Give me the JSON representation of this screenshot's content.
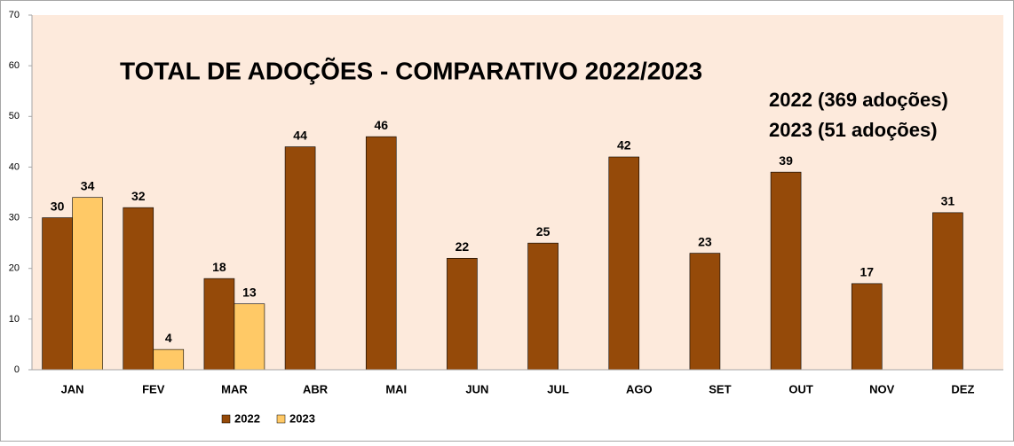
{
  "chart_data": {
    "type": "bar",
    "title": "TOTAL DE ADOÇÕES - COMPARATIVO 2022/2023",
    "annotations": [
      "2022 (369 adoções)",
      "2023 (51 adoções)"
    ],
    "categories": [
      "JAN",
      "FEV",
      "MAR",
      "ABR",
      "MAI",
      "JUN",
      "JUL",
      "AGO",
      "SET",
      "OUT",
      "NOV",
      "DEZ"
    ],
    "series": [
      {
        "name": "2022",
        "color": "#954a09",
        "values": [
          30,
          32,
          18,
          44,
          46,
          22,
          25,
          42,
          23,
          39,
          17,
          31
        ]
      },
      {
        "name": "2023",
        "color": "#ffc966",
        "values": [
          34,
          4,
          13,
          null,
          null,
          null,
          null,
          null,
          null,
          null,
          null,
          null
        ]
      }
    ],
    "ylim": [
      0,
      70
    ],
    "yticks": [
      0,
      10,
      20,
      30,
      40,
      50,
      60,
      70
    ],
    "grid": false,
    "legend": "bottom"
  }
}
